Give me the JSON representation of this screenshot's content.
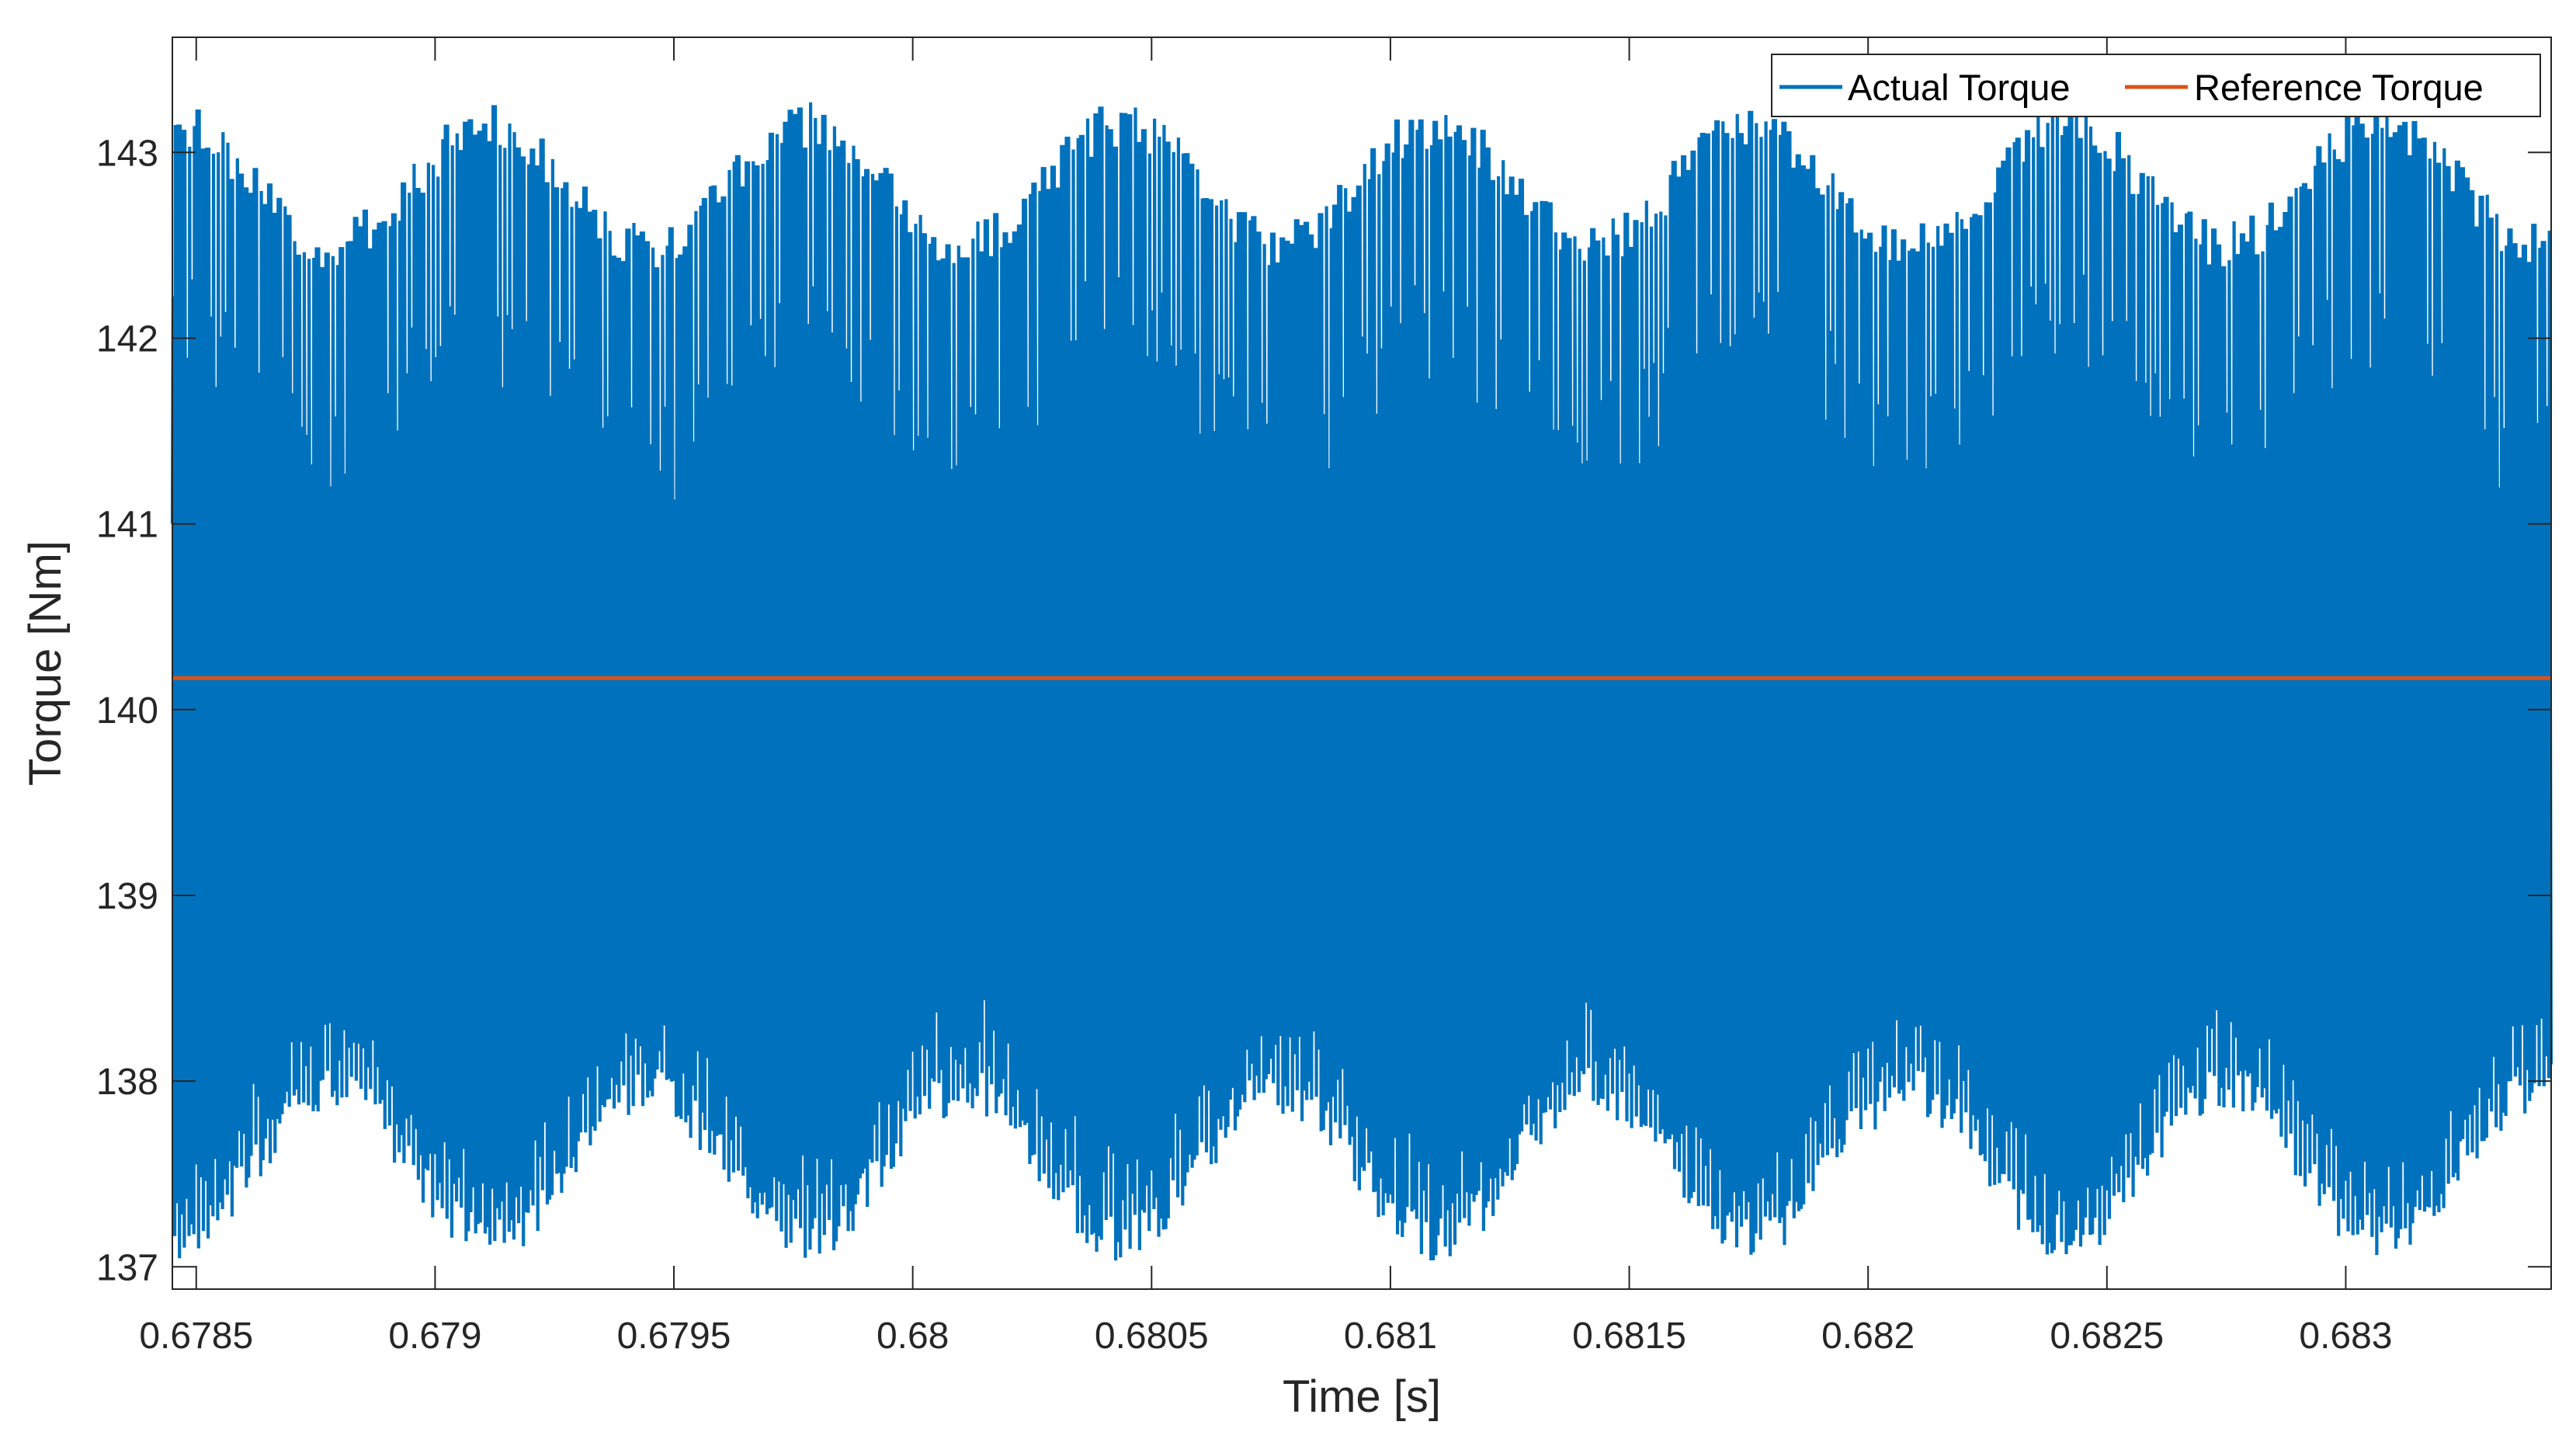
{
  "chart_data": {
    "type": "line",
    "title": "",
    "xlabel": "Time [s]",
    "ylabel": "Torque [Nm]",
    "xlim": [
      0.67845,
      0.68343
    ],
    "ylim": [
      136.88,
      143.62
    ],
    "grid": false,
    "legend_position": "top-right",
    "x_ticks": [
      0.6785,
      0.679,
      0.6795,
      0.68,
      0.6805,
      0.681,
      0.6815,
      0.682,
      0.6825,
      0.683
    ],
    "x_tick_labels": [
      "0.6785",
      "0.679",
      "0.6795",
      "0.68",
      "0.6805",
      "0.681",
      "0.6815",
      "0.682",
      "0.6825",
      "0.683"
    ],
    "y_ticks": [
      137,
      138,
      139,
      140,
      141,
      142,
      143
    ],
    "y_tick_labels": [
      "137",
      "138",
      "139",
      "140",
      "141",
      "142",
      "143"
    ],
    "series": [
      {
        "name": "Actual Torque",
        "color": "#0072BD",
        "style": "ripple",
        "mean": 140.2,
        "switching_period_s": 1e-05,
        "modulation_period_s": 0.00066,
        "max_range": [
          142.5,
          143.15
        ],
        "min_range": [
          137.15,
          137.95
        ]
      },
      {
        "name": "Reference Torque",
        "color": "#D95319",
        "x": [
          0.67845,
          0.68343
        ],
        "y": [
          140.17,
          140.17
        ]
      }
    ]
  }
}
